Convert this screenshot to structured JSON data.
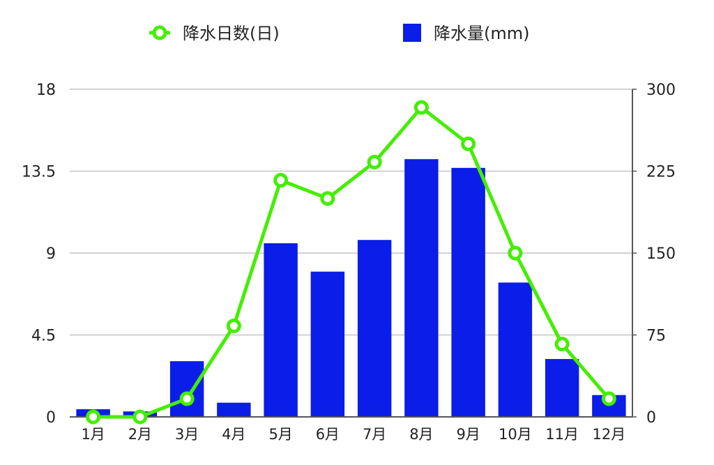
{
  "chart_data": {
    "type": "bar",
    "categories": [
      "1月",
      "2月",
      "3月",
      "4月",
      "5月",
      "6月",
      "7月",
      "8月",
      "9月",
      "10月",
      "11月",
      "12月"
    ],
    "series": [
      {
        "name": "降水日数(日)",
        "type": "line",
        "axis": "left",
        "color": "#44ee00",
        "values": [
          0,
          0,
          1,
          5,
          13,
          12,
          14,
          17,
          15,
          9,
          4,
          1
        ]
      },
      {
        "name": "降水量(mm)",
        "type": "bar",
        "axis": "right",
        "color": "#0b1de8",
        "values": [
          7,
          5,
          51,
          13,
          159,
          133,
          162,
          236,
          228,
          123,
          53,
          20
        ]
      }
    ],
    "left_axis": {
      "ylim": [
        0,
        18
      ],
      "ticks": [
        "0",
        "4.5",
        "9",
        "13.5",
        "18"
      ]
    },
    "right_axis": {
      "ylim": [
        0,
        300
      ],
      "ticks": [
        "0",
        "75",
        "150",
        "225",
        "300"
      ]
    },
    "grid": true,
    "legend_position": "top"
  }
}
